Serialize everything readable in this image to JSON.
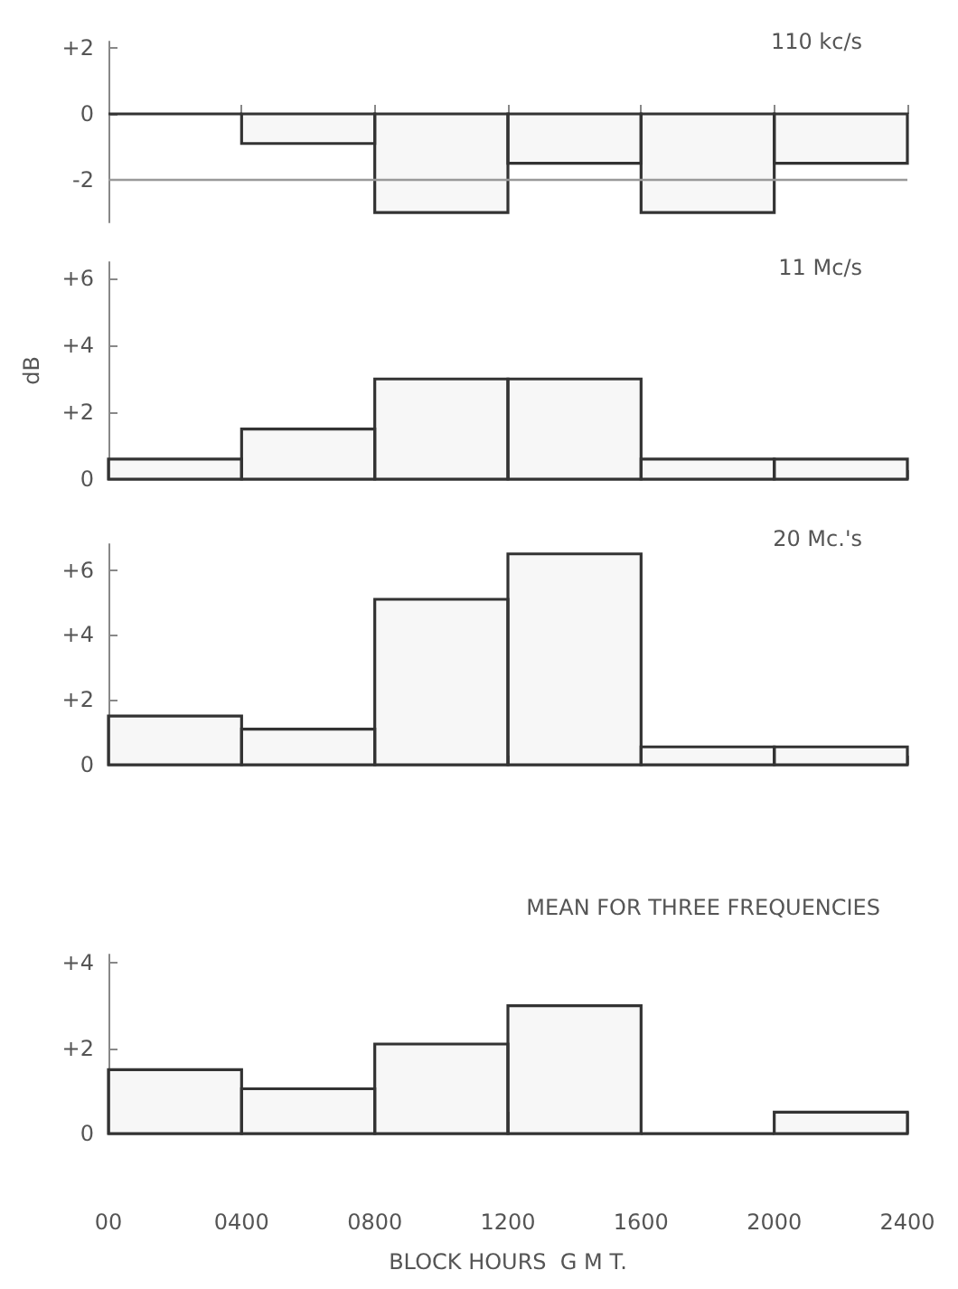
{
  "chart_data": [
    {
      "type": "histogram",
      "title": "110 kc/s",
      "bins": [
        0,
        400,
        800,
        1200,
        1600,
        2000,
        2400
      ],
      "values": [
        0,
        -0.9,
        -3,
        -1.5,
        -3,
        -1.5
      ],
      "color": "#333333",
      "xlim": [
        0,
        2400
      ],
      "xticks": [
        {
          "value": 0,
          "label": null
        },
        {
          "value": 400,
          "label": null
        },
        {
          "value": 800,
          "label": null
        },
        {
          "value": 1200,
          "label": null
        },
        {
          "value": 1600,
          "label": null
        },
        {
          "value": 2000,
          "label": null
        },
        {
          "value": 2400,
          "label": null
        }
      ],
      "ylim": [
        -3.3,
        2.2
      ],
      "yticks": [
        {
          "value": 2,
          "label": "+2"
        },
        {
          "value": 0,
          "label": "0"
        },
        {
          "value": -2,
          "label": "-2"
        }
      ],
      "ref_lines": [
        {
          "axis": "y",
          "value": -2,
          "label": null,
          "color": "#999999"
        }
      ],
      "tick_labels": "y"
    },
    {
      "type": "histogram",
      "title": "11 Mc/s",
      "ylabel": "dB",
      "bins": [
        0,
        400,
        800,
        1200,
        1600,
        2000,
        2400
      ],
      "values": [
        0.6,
        1.5,
        3,
        3,
        0.6,
        0.6
      ],
      "color": "#333333",
      "xlim": [
        0,
        2400
      ],
      "xticks": [
        {
          "value": 0,
          "label": null
        },
        {
          "value": 400,
          "label": null
        },
        {
          "value": 800,
          "label": null
        },
        {
          "value": 1200,
          "label": null
        },
        {
          "value": 1600,
          "label": null
        },
        {
          "value": 2000,
          "label": null
        },
        {
          "value": 2400,
          "label": null
        }
      ],
      "ylim": [
        0,
        6.5
      ],
      "yticks": [
        {
          "value": 0,
          "label": "0"
        },
        {
          "value": 2,
          "label": "+2"
        },
        {
          "value": 4,
          "label": "+4"
        },
        {
          "value": 6,
          "label": "+6"
        }
      ],
      "tick_labels": "y"
    },
    {
      "type": "histogram",
      "title": "20 Mc.'s",
      "bins": [
        0,
        400,
        800,
        1200,
        1600,
        2000,
        2400
      ],
      "values": [
        1.5,
        1.1,
        5.1,
        6.5,
        0.55,
        0.55
      ],
      "color": "#333333",
      "xlim": [
        0,
        2400
      ],
      "xticks": [
        {
          "value": 0,
          "label": null
        },
        {
          "value": 400,
          "label": null
        },
        {
          "value": 800,
          "label": null
        },
        {
          "value": 1200,
          "label": null
        },
        {
          "value": 1600,
          "label": null
        },
        {
          "value": 2000,
          "label": null
        },
        {
          "value": 2400,
          "label": null
        }
      ],
      "ylim": [
        0,
        6.8
      ],
      "yticks": [
        {
          "value": 0,
          "label": "0"
        },
        {
          "value": 2,
          "label": "+2"
        },
        {
          "value": 4,
          "label": "+4"
        },
        {
          "value": 6,
          "label": "+6"
        }
      ],
      "tick_labels": "y"
    },
    {
      "type": "histogram",
      "title": "MEAN FOR THREE FREQUENCIES",
      "xlabel": "BLOCK HOURS  G M T.",
      "bins": [
        0,
        400,
        800,
        1200,
        1600,
        2000,
        2400
      ],
      "values": [
        1.5,
        1.05,
        2.1,
        3,
        0,
        0.5
      ],
      "color": "#333333",
      "xlim": [
        0,
        2400
      ],
      "ylim": [
        0,
        4.2
      ],
      "yticks": [
        {
          "value": 0,
          "label": "0"
        },
        {
          "value": 2,
          "label": "+2"
        },
        {
          "value": 4,
          "label": "+4"
        }
      ],
      "xticks": [
        {
          "value": 0,
          "label": "00"
        },
        {
          "value": 400,
          "label": "0400"
        },
        {
          "value": 800,
          "label": "0800"
        },
        {
          "value": 1200,
          "label": "1200"
        },
        {
          "value": 1600,
          "label": "1600"
        },
        {
          "value": 2000,
          "label": "2000"
        },
        {
          "value": 2400,
          "label": "2400"
        }
      ]
    }
  ]
}
